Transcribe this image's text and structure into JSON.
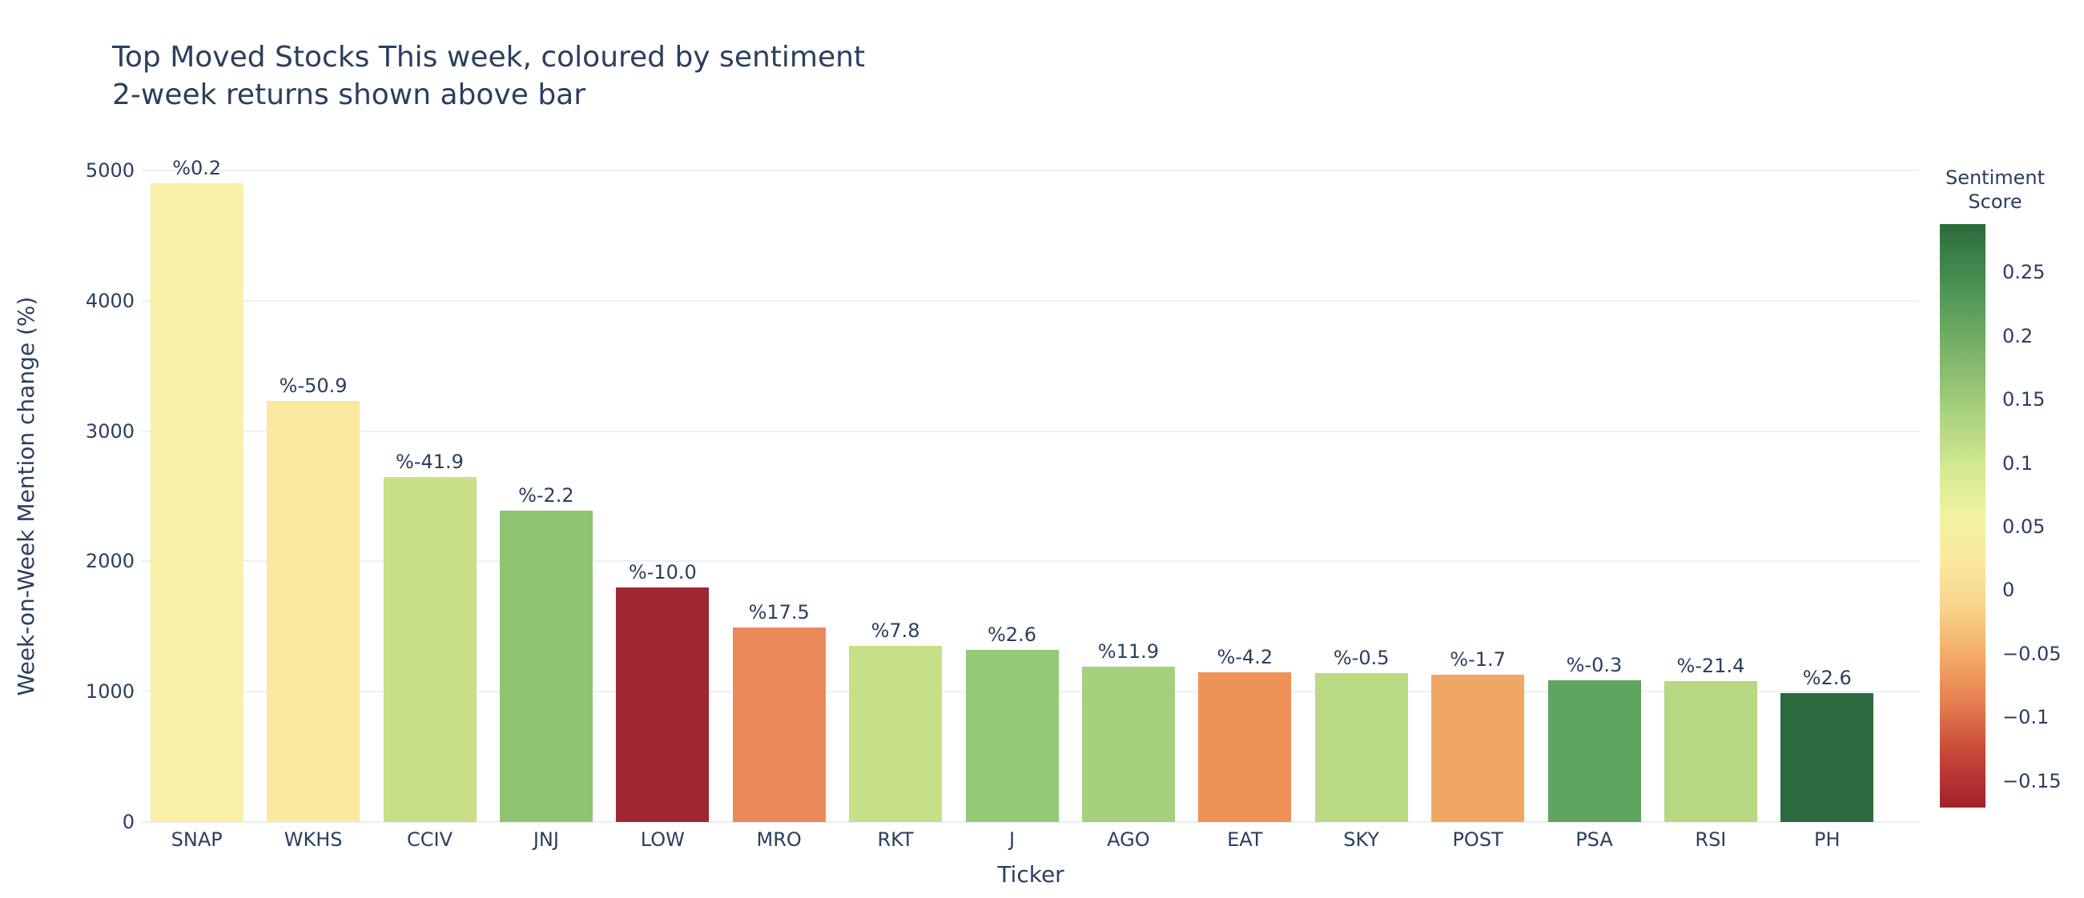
{
  "chart_data": {
    "type": "bar",
    "title": "Top Moved Stocks This week, coloured by sentiment",
    "subtitle": "2-week returns shown above bar",
    "xlabel": "Ticker",
    "ylabel": "Week-on-Week Mention change (%)",
    "ylim": [
      0,
      5000
    ],
    "yticks": [
      0,
      1000,
      2000,
      3000,
      4000,
      5000
    ],
    "grid": true,
    "legend_position": "right-colorbar",
    "categories": [
      "SNAP",
      "WKHS",
      "CCIV",
      "JNJ",
      "LOW",
      "MRO",
      "RKT",
      "J",
      "AGO",
      "EAT",
      "SKY",
      "POST",
      "PSA",
      "RSI",
      "PH"
    ],
    "series": [
      {
        "name": "Week-on-Week Mention change (%)",
        "values": [
          4900,
          3230,
          2650,
          2390,
          1800,
          1490,
          1350,
          1320,
          1190,
          1150,
          1140,
          1130,
          1090,
          1080,
          990
        ]
      }
    ],
    "bar_labels": [
      "%0.2",
      "%-50.9",
      "%-41.9",
      "%-2.2",
      "%-10.0",
      "%17.5",
      "%7.8",
      "%2.6",
      "%11.9",
      "%-4.2",
      "%-0.5",
      "%-1.7",
      "%-0.3",
      "%-21.4",
      "%2.6"
    ],
    "bar_colors": [
      "#f9efa6",
      "#fae8a0",
      "#c8e088",
      "#8ec471",
      "#9f2733",
      "#ea8a5b",
      "#c5e087",
      "#95c877",
      "#a4cf7d",
      "#ee9258",
      "#badb83",
      "#f0a763",
      "#5fa55f",
      "#b5d880",
      "#2b6a3f"
    ],
    "colorbar": {
      "title_line1": "Sentiment",
      "title_line2": "Score",
      "tick_labels": [
        "0.25",
        "0.2",
        "0.15",
        "0.1",
        "0.05",
        "0",
        "−0.05",
        "−0.1",
        "−0.15"
      ],
      "tick_values": [
        0.25,
        0.2,
        0.15,
        0.1,
        0.05,
        0,
        -0.05,
        -0.1,
        -0.15
      ],
      "range": [
        -0.171,
        0.288
      ],
      "gradient_stops": [
        {
          "pos": 0,
          "color": "#2a6b3c"
        },
        {
          "pos": 12,
          "color": "#4f9758"
        },
        {
          "pos": 22,
          "color": "#7ab468"
        },
        {
          "pos": 32,
          "color": "#a8d17c"
        },
        {
          "pos": 42,
          "color": "#d4e994"
        },
        {
          "pos": 50,
          "color": "#f0f2a2"
        },
        {
          "pos": 58,
          "color": "#fae8a0"
        },
        {
          "pos": 66,
          "color": "#f8d289"
        },
        {
          "pos": 74,
          "color": "#f2ab67"
        },
        {
          "pos": 82,
          "color": "#e67f50"
        },
        {
          "pos": 90,
          "color": "#c94a39"
        },
        {
          "pos": 100,
          "color": "#a02129"
        }
      ]
    }
  },
  "colors": {
    "text": "#2a3f5f",
    "grid": "#ebf0f8",
    "zeroline": "#e8edf5",
    "background": "#ffffff"
  }
}
